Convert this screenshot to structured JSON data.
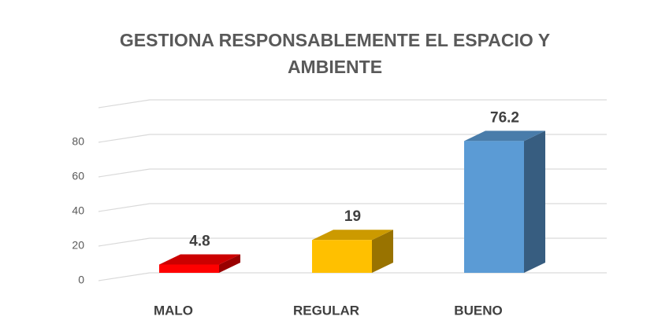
{
  "chart_data": {
    "type": "bar3d",
    "title": "GESTIONA RESPONSABLEMENTE EL ESPACIO Y AMBIENTE",
    "categories": [
      "MALO",
      "REGULAR",
      "BUENO"
    ],
    "values": [
      4.8,
      19,
      76.2
    ],
    "colors": [
      "#ff0000",
      "#ffc000",
      "#5b9bd5"
    ],
    "ylim": [
      0,
      100
    ],
    "yticks": [
      0,
      20,
      40,
      60,
      80
    ],
    "grid": true
  }
}
